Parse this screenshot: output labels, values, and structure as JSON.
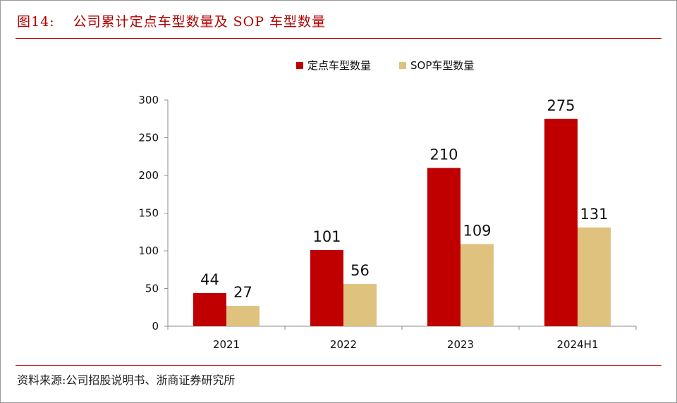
{
  "header": {
    "figure_number": "图14:",
    "title": "公司累计定点车型数量及 SOP 车型数量"
  },
  "source": "资料来源:公司招股说明书、浙商证券研究所",
  "colors": {
    "accent": "#c00000",
    "series_1": "#c00000",
    "series_2": "#dfc27d"
  },
  "chart_data": {
    "type": "bar",
    "categories": [
      "2021",
      "2022",
      "2023",
      "2024H1"
    ],
    "series": [
      {
        "name": "定点车型数量",
        "values": [
          44,
          101,
          210,
          275
        ],
        "color": "#c00000"
      },
      {
        "name": "SOP车型数量",
        "values": [
          27,
          56,
          109,
          131
        ],
        "color": "#dfc27d"
      }
    ],
    "ylim": [
      0,
      300
    ],
    "yticks": [
      0,
      50,
      100,
      150,
      200,
      250,
      300
    ],
    "legend_position": "top-center",
    "grid": false
  }
}
